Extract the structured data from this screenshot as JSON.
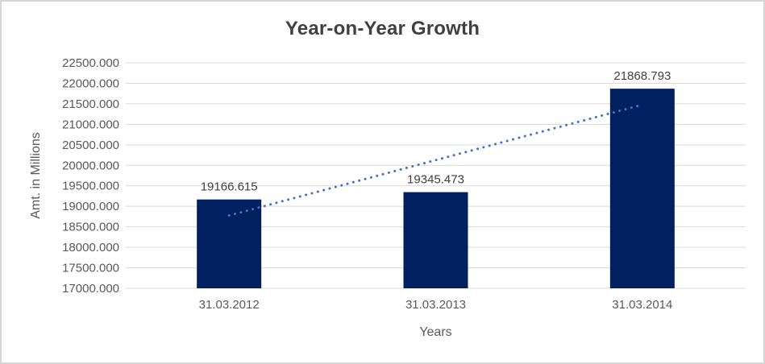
{
  "window": {
    "background_color": "#ffffff",
    "border_color": "#d6d6d6"
  },
  "chart_data": {
    "type": "bar",
    "title": "Year-on-Year Growth",
    "xlabel": "Years",
    "ylabel": "Amt. in Millions",
    "categories": [
      "31.03.2012",
      "31.03.2013",
      "31.03.2014"
    ],
    "values": [
      19166.615,
      19345.473,
      21868.793
    ],
    "data_labels": [
      "19166.615",
      "19345.473",
      "21868.793"
    ],
    "ylim": [
      17000,
      22500
    ],
    "ytick_step": 500,
    "ytick_labels": [
      "17000.000",
      "17500.000",
      "18000.000",
      "18500.000",
      "19000.000",
      "19500.000",
      "20000.000",
      "20500.000",
      "21000.000",
      "21500.000",
      "22000.000",
      "22500.000"
    ],
    "grid": true,
    "legend": false,
    "bar_color": "#002060",
    "gridline_color": "#d9d9d9",
    "trendline": {
      "type": "linear",
      "line_style": "dotted",
      "color": "#4472c4"
    },
    "text_colors": {
      "title": "#404040",
      "ticks": "#595959",
      "data_labels": "#404040",
      "axis_titles": "#595959"
    }
  }
}
